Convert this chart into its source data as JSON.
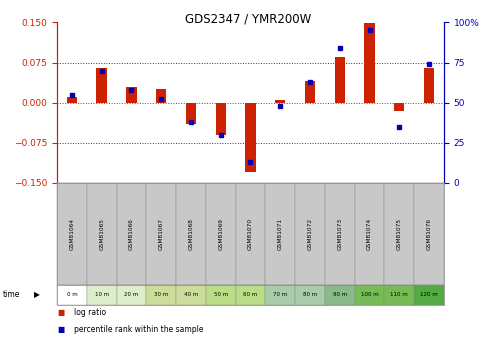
{
  "title": "GDS2347 / YMR200W",
  "samples": [
    "GSM81064",
    "GSM81065",
    "GSM81066",
    "GSM81067",
    "GSM81068",
    "GSM81069",
    "GSM81070",
    "GSM81071",
    "GSM81072",
    "GSM81073",
    "GSM81074",
    "GSM81075",
    "GSM81076"
  ],
  "time_labels": [
    "0 m",
    "10 m",
    "20 m",
    "30 m",
    "40 m",
    "50 m",
    "60 m",
    "70 m",
    "80 m",
    "90 m",
    "100 m",
    "110 m",
    "120 m"
  ],
  "log_ratio": [
    0.01,
    0.065,
    0.03,
    0.025,
    -0.04,
    -0.06,
    -0.13,
    0.005,
    0.04,
    0.085,
    0.148,
    -0.015,
    0.065
  ],
  "percentile": [
    55,
    70,
    58,
    52,
    38,
    30,
    13,
    48,
    63,
    84,
    95,
    35,
    74
  ],
  "ylim_left": [
    -0.15,
    0.15
  ],
  "ylim_right": [
    0,
    100
  ],
  "yticks_left": [
    -0.15,
    -0.075,
    0.0,
    0.075,
    0.15
  ],
  "yticks_right": [
    0,
    25,
    50,
    75,
    100
  ],
  "bar_color_red": "#CC2200",
  "bar_color_blue": "#0000BB",
  "zero_line_color": "#CC2200",
  "dotted_line_color": "#333333",
  "sample_row_colors": [
    "#C8C8C8",
    "#C8C8C8",
    "#C8C8C8",
    "#C8C8C8",
    "#C8C8C8",
    "#C8C8C8",
    "#C8C8C8",
    "#C8C8C8",
    "#C8C8C8",
    "#C8C8C8",
    "#C8C8C8",
    "#C8C8C8",
    "#C8C8C8"
  ],
  "time_row_colors": [
    "#FFFFFF",
    "#DDEECC",
    "#DDEECC",
    "#CCDD99",
    "#CCDD99",
    "#BBDD88",
    "#BBDD88",
    "#AACCAA",
    "#AACCAA",
    "#88BB88",
    "#77BB55",
    "#77BB55",
    "#55AA44"
  ]
}
